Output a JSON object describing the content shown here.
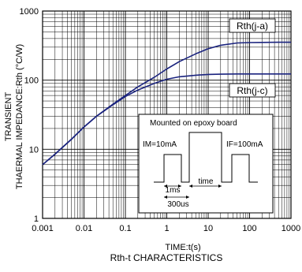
{
  "chart_data": {
    "type": "line",
    "title": "Rth-t CHARACTERISTICS",
    "xlabel": "TIME:t(s)",
    "ylabel_line1": "TRANSIENT",
    "ylabel_line2": "THAERMAL IMPEDANCE:Rth (°C/W)",
    "x_scale": "log",
    "y_scale": "log",
    "xlim": [
      0.001,
      1000
    ],
    "ylim": [
      1,
      1000
    ],
    "x_ticks": [
      "0.001",
      "0.01",
      "0.1",
      "1",
      "10",
      "100",
      "1000"
    ],
    "y_ticks": [
      "1",
      "10",
      "100",
      "1000"
    ],
    "grid": true,
    "line_color": "#1a237e",
    "series": [
      {
        "name": "Rth(j-a)",
        "x": [
          0.001,
          0.002,
          0.005,
          0.01,
          0.02,
          0.05,
          0.1,
          0.2,
          0.5,
          1,
          2,
          5,
          10,
          20,
          50,
          100,
          200,
          500,
          1000
        ],
        "y": [
          6,
          8.5,
          14,
          21,
          30,
          45,
          60,
          80,
          110,
          145,
          185,
          240,
          285,
          320,
          345,
          350,
          352,
          353,
          353
        ]
      },
      {
        "name": "Rth(j-c)",
        "x": [
          0.001,
          0.002,
          0.005,
          0.01,
          0.02,
          0.05,
          0.1,
          0.2,
          0.5,
          1,
          2,
          5,
          10,
          20,
          50,
          100,
          200,
          500,
          1000
        ],
        "y": [
          6,
          8.5,
          14,
          21,
          30,
          44,
          58,
          72,
          90,
          103,
          112,
          118,
          121,
          122,
          123,
          123,
          123,
          123,
          123
        ]
      }
    ],
    "inset": {
      "title": "Mounted on epoxy board",
      "im_label": "IM=10mA",
      "if_label": "IF=100mA",
      "dim_1ms": "1ms",
      "dim_time": "time",
      "dim_300us": "300us"
    }
  }
}
